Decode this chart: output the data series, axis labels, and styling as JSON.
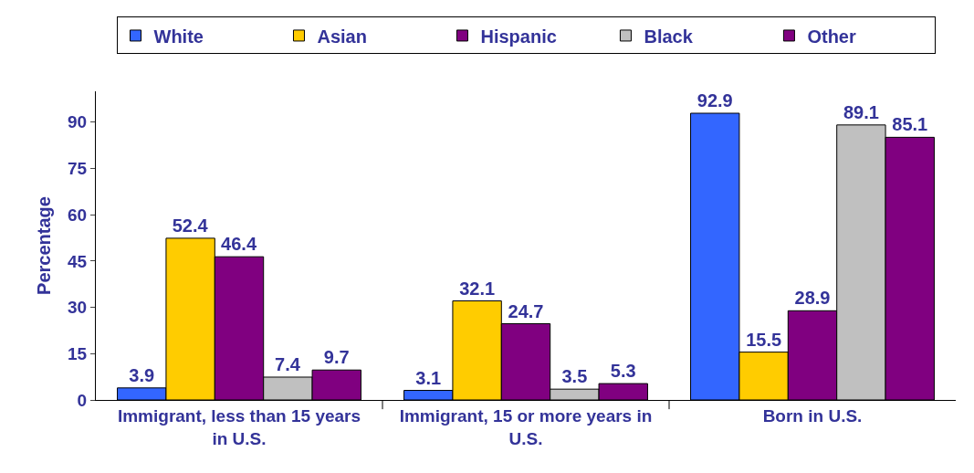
{
  "chart_data": {
    "type": "bar",
    "ylabel": "Percentage",
    "categories": [
      "Immigrant, less than 15 years in U.S.",
      "Immigrant, 15 or more years in U.S.",
      "Born in U.S."
    ],
    "series": [
      {
        "name": "White",
        "color": "#3366ff",
        "values": [
          3.9,
          3.1,
          92.9
        ]
      },
      {
        "name": "Asian",
        "color": "#ffcc00",
        "values": [
          52.4,
          32.1,
          15.5
        ]
      },
      {
        "name": "Hispanic",
        "color": "#800080",
        "values": [
          46.4,
          24.7,
          28.9
        ]
      },
      {
        "name": "Black",
        "color": "#c0c0c0",
        "values": [
          7.4,
          3.5,
          89.1
        ]
      },
      {
        "name": "Other",
        "color": "#800080",
        "values": [
          9.7,
          5.3,
          85.1
        ]
      }
    ],
    "ylim": [
      0,
      100
    ],
    "yticks": [
      0,
      15,
      30,
      45,
      60,
      75,
      90
    ],
    "grid": false,
    "legend": "top",
    "data_labels": true
  }
}
